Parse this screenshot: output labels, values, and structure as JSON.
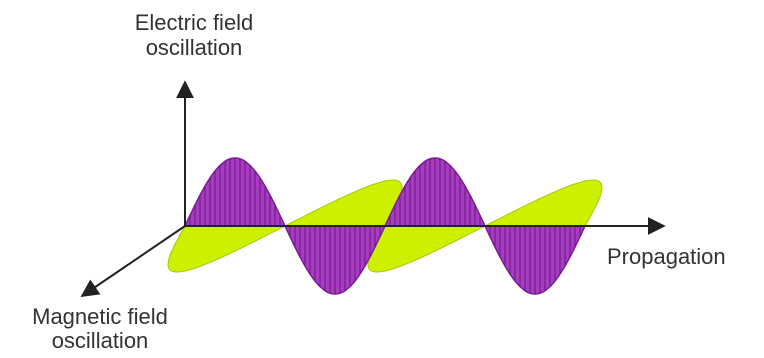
{
  "labels": {
    "electric": [
      "Electric field",
      "oscillation"
    ],
    "propagation": "Propagation",
    "magnetic": [
      "Magnetic field",
      "oscillation"
    ]
  }
}
